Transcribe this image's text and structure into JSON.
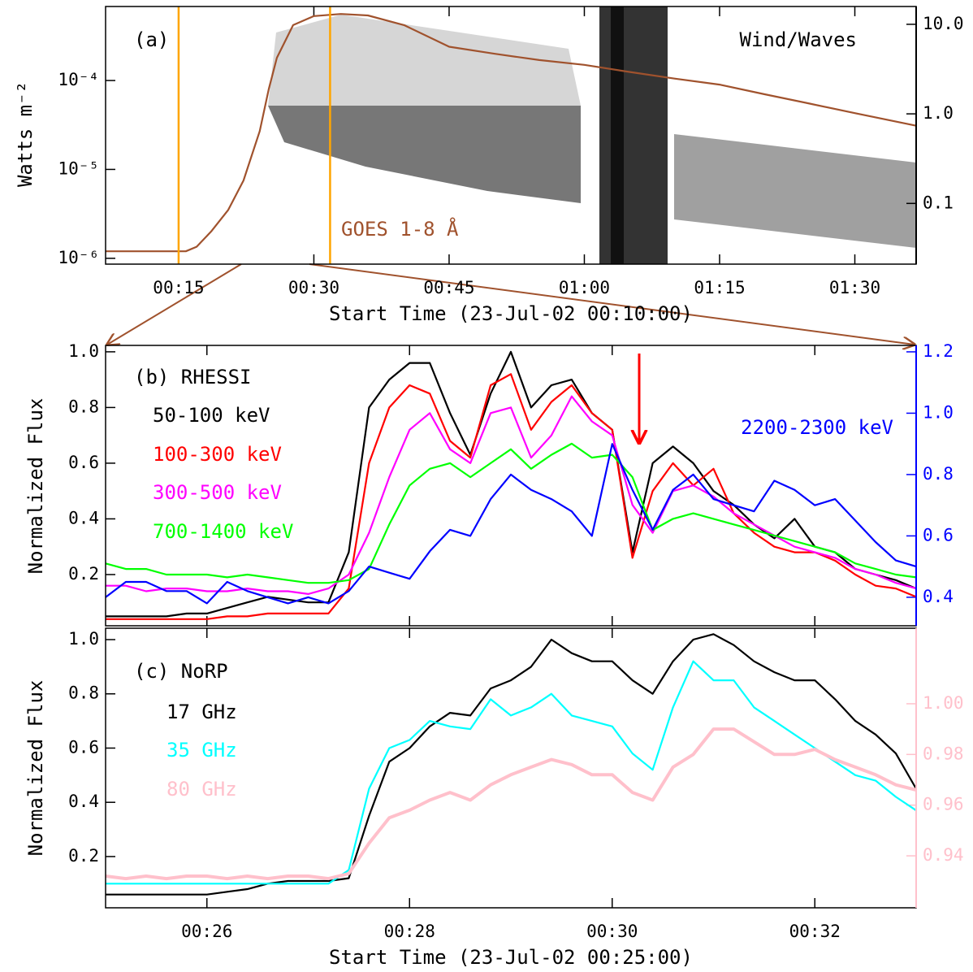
{
  "chart_data": [
    {
      "type": "line",
      "ylog": true,
      "y2log": true,
      "ylabel": "Watts m⁻²",
      "xlabel": "Start Time (23-Jul-02 00:10:00)",
      "annotations": [
        "(a)",
        "Wind/Waves"
      ],
      "xlim": [
        6.9,
        96.8
      ],
      "ylim": [
        8.6e-07,
        0.00068
      ],
      "y2lim": [
        0.021,
        15.8
      ],
      "y2color": "#000000",
      "xticks": [
        {
          "value": 15,
          "label": "00:15"
        },
        {
          "value": 30,
          "label": "00:30"
        },
        {
          "value": 45,
          "label": "00:45"
        },
        {
          "value": 60,
          "label": "01:00"
        },
        {
          "value": 75,
          "label": "01:15"
        },
        {
          "value": 90,
          "label": "01:30"
        }
      ],
      "yticks": [
        {
          "value": 1e-06,
          "label": "10⁻⁶"
        },
        {
          "value": 1e-05,
          "label": "10⁻⁵"
        },
        {
          "value": 0.0001,
          "label": "10⁻⁴"
        }
      ],
      "y2ticks": [
        0.1,
        {
          "value": 1,
          "label": "1.0"
        },
        {
          "value": 10,
          "label": "10.0"
        }
      ],
      "vlines": {
        "color": "#ffa500",
        "values": [
          15,
          31.8
        ]
      },
      "x": [
        6.9,
        15.8,
        17,
        18.6,
        20.5,
        22.2,
        24,
        25,
        25.9,
        27.7,
        30,
        33,
        36,
        40,
        45,
        50,
        55,
        60,
        65,
        70,
        75,
        80,
        85,
        90,
        96.8
      ],
      "series": [
        {
          "name": "GOES 1-8 Å",
          "color": "#a0522d",
          "values": [
            1.2e-06,
            1.2e-06,
            1.35e-06,
            2e-06,
            3.5e-06,
            7.5e-06,
            2.7e-05,
            8e-05,
            0.00018,
            0.00042,
            0.00053,
            0.00056,
            0.00054,
            0.00042,
            0.00024,
            0.0002,
            0.00017,
            0.00015,
            0.000125,
            0.000105,
            9e-05,
            7e-05,
            5.5e-05,
            4.3e-05,
            3.1e-05
          ]
        }
      ]
    },
    {
      "type": "line",
      "ylabel": "Normalized Flux",
      "annotations": [
        "(b) RHESSI"
      ],
      "xlim": [
        25,
        33
      ],
      "ylim": [
        0.016,
        1.023
      ],
      "y2lim": [
        0.307,
        1.221
      ],
      "y2color": "#0000ff",
      "yticks": [
        0.2,
        0.4,
        0.6,
        0.8,
        {
          "value": 1,
          "label": "1.0"
        }
      ],
      "y2ticks": [
        0.4,
        0.6,
        0.8,
        {
          "value": 1,
          "label": "1.0"
        },
        1.2
      ],
      "x": [
        25,
        25.2,
        25.4,
        25.6,
        25.8,
        26,
        26.2,
        26.4,
        26.6,
        26.8,
        27,
        27.2,
        27.4,
        27.6,
        27.8,
        28,
        28.2,
        28.4,
        28.6,
        28.8,
        29,
        29.2,
        29.4,
        29.6,
        29.8,
        30,
        30.2,
        30.4,
        30.6,
        30.8,
        31,
        31.2,
        31.4,
        31.6,
        31.8,
        32,
        32.2,
        32.4,
        32.6,
        32.8,
        33
      ],
      "series": [
        {
          "name": "50-100 keV",
          "color": "#000000",
          "values": [
            0.05,
            0.05,
            0.05,
            0.05,
            0.06,
            0.06,
            0.08,
            0.1,
            0.12,
            0.11,
            0.1,
            0.1,
            0.28,
            0.8,
            0.9,
            0.96,
            0.96,
            0.78,
            0.63,
            0.85,
            1.0,
            0.8,
            0.88,
            0.9,
            0.78,
            0.72,
            0.28,
            0.6,
            0.66,
            0.6,
            0.5,
            0.45,
            0.38,
            0.33,
            0.4,
            0.3,
            0.28,
            0.22,
            0.2,
            0.18,
            0.15
          ]
        },
        {
          "name": "100-300 keV",
          "color": "#ff0000",
          "values": [
            0.04,
            0.04,
            0.04,
            0.04,
            0.04,
            0.04,
            0.05,
            0.05,
            0.06,
            0.06,
            0.06,
            0.06,
            0.15,
            0.6,
            0.8,
            0.88,
            0.85,
            0.68,
            0.62,
            0.88,
            0.92,
            0.72,
            0.82,
            0.88,
            0.78,
            0.72,
            0.26,
            0.5,
            0.6,
            0.52,
            0.58,
            0.42,
            0.35,
            0.3,
            0.28,
            0.28,
            0.25,
            0.2,
            0.16,
            0.15,
            0.12
          ]
        },
        {
          "name": "300-500 keV",
          "color": "#ff00ff",
          "values": [
            0.16,
            0.16,
            0.14,
            0.15,
            0.15,
            0.14,
            0.14,
            0.15,
            0.14,
            0.14,
            0.13,
            0.15,
            0.2,
            0.35,
            0.55,
            0.72,
            0.78,
            0.65,
            0.6,
            0.78,
            0.8,
            0.62,
            0.7,
            0.84,
            0.75,
            0.7,
            0.45,
            0.35,
            0.5,
            0.52,
            0.48,
            0.42,
            0.38,
            0.34,
            0.3,
            0.28,
            0.26,
            0.22,
            0.2,
            0.17,
            0.15
          ]
        },
        {
          "name": "700-1400 keV",
          "color": "#00ff00",
          "values": [
            0.24,
            0.22,
            0.22,
            0.2,
            0.2,
            0.2,
            0.19,
            0.2,
            0.19,
            0.18,
            0.17,
            0.17,
            0.18,
            0.22,
            0.38,
            0.52,
            0.58,
            0.6,
            0.55,
            0.6,
            0.65,
            0.58,
            0.63,
            0.67,
            0.62,
            0.63,
            0.55,
            0.36,
            0.4,
            0.42,
            0.4,
            0.38,
            0.36,
            0.34,
            0.32,
            0.3,
            0.28,
            0.24,
            0.22,
            0.2,
            0.19
          ]
        },
        {
          "name": "2200-2300 keV",
          "color": "#0000ff",
          "axis": "y2",
          "values": [
            0.4,
            0.45,
            0.45,
            0.42,
            0.42,
            0.38,
            0.45,
            0.42,
            0.4,
            0.38,
            0.4,
            0.38,
            0.42,
            0.5,
            0.48,
            0.46,
            0.55,
            0.62,
            0.6,
            0.72,
            0.8,
            0.75,
            0.72,
            0.68,
            0.6,
            0.9,
            0.75,
            0.62,
            0.75,
            0.8,
            0.72,
            0.7,
            0.68,
            0.78,
            0.75,
            0.7,
            0.72,
            0.65,
            0.58,
            0.52,
            0.5
          ]
        }
      ]
    },
    {
      "type": "line",
      "ylabel": "Normalized Flux",
      "xlabel": "Start Time (23-Jul-02 00:25:00)",
      "annotations": [
        "(c) NoRP"
      ],
      "xlim": [
        25,
        33
      ],
      "ylim": [
        0.011,
        1.042
      ],
      "y2lim": [
        0.9195,
        1.0298
      ],
      "y2color": "#ffc0cb",
      "xticks": [
        {
          "value": 26,
          "label": "00:26"
        },
        {
          "value": 28,
          "label": "00:28"
        },
        {
          "value": 30,
          "label": "00:30"
        },
        {
          "value": 32,
          "label": "00:32"
        }
      ],
      "yticks": [
        0.2,
        0.4,
        0.6,
        0.8,
        {
          "value": 1,
          "label": "1.0"
        }
      ],
      "y2ticks": [
        0.94,
        0.96,
        0.98,
        {
          "value": 1,
          "label": "1.00"
        }
      ],
      "x": [
        25,
        25.2,
        25.4,
        25.6,
        25.8,
        26,
        26.2,
        26.4,
        26.6,
        26.8,
        27,
        27.2,
        27.4,
        27.6,
        27.8,
        28,
        28.2,
        28.4,
        28.6,
        28.8,
        29,
        29.2,
        29.4,
        29.6,
        29.8,
        30,
        30.2,
        30.4,
        30.6,
        30.8,
        31,
        31.2,
        31.4,
        31.6,
        31.8,
        32,
        32.2,
        32.4,
        32.6,
        32.8,
        33
      ],
      "series": [
        {
          "name": "17 GHz",
          "color": "#000000",
          "values": [
            0.06,
            0.06,
            0.06,
            0.06,
            0.06,
            0.06,
            0.07,
            0.08,
            0.1,
            0.11,
            0.11,
            0.11,
            0.12,
            0.35,
            0.55,
            0.6,
            0.68,
            0.73,
            0.72,
            0.82,
            0.85,
            0.9,
            1.0,
            0.95,
            0.92,
            0.92,
            0.85,
            0.8,
            0.92,
            1.0,
            1.02,
            0.98,
            0.92,
            0.88,
            0.85,
            0.85,
            0.78,
            0.7,
            0.65,
            0.58,
            0.45
          ]
        },
        {
          "name": "35 GHz",
          "color": "#00ffff",
          "values": [
            0.1,
            0.1,
            0.1,
            0.1,
            0.1,
            0.1,
            0.1,
            0.1,
            0.1,
            0.1,
            0.1,
            0.1,
            0.15,
            0.45,
            0.6,
            0.63,
            0.7,
            0.68,
            0.67,
            0.78,
            0.72,
            0.75,
            0.8,
            0.72,
            0.7,
            0.68,
            0.58,
            0.52,
            0.75,
            0.92,
            0.85,
            0.85,
            0.75,
            0.7,
            0.65,
            0.6,
            0.55,
            0.5,
            0.48,
            0.42,
            0.37
          ]
        },
        {
          "name": "80 GHz",
          "color": "#ffc0cb",
          "axis": "y2",
          "values": [
            0.932,
            0.931,
            0.932,
            0.931,
            0.932,
            0.932,
            0.931,
            0.932,
            0.931,
            0.932,
            0.932,
            0.931,
            0.933,
            0.945,
            0.955,
            0.958,
            0.962,
            0.965,
            0.962,
            0.968,
            0.972,
            0.975,
            0.978,
            0.976,
            0.972,
            0.972,
            0.965,
            0.962,
            0.975,
            0.98,
            0.99,
            0.99,
            0.985,
            0.98,
            0.98,
            0.982,
            0.978,
            0.975,
            0.972,
            0.968,
            0.966
          ]
        }
      ]
    }
  ]
}
